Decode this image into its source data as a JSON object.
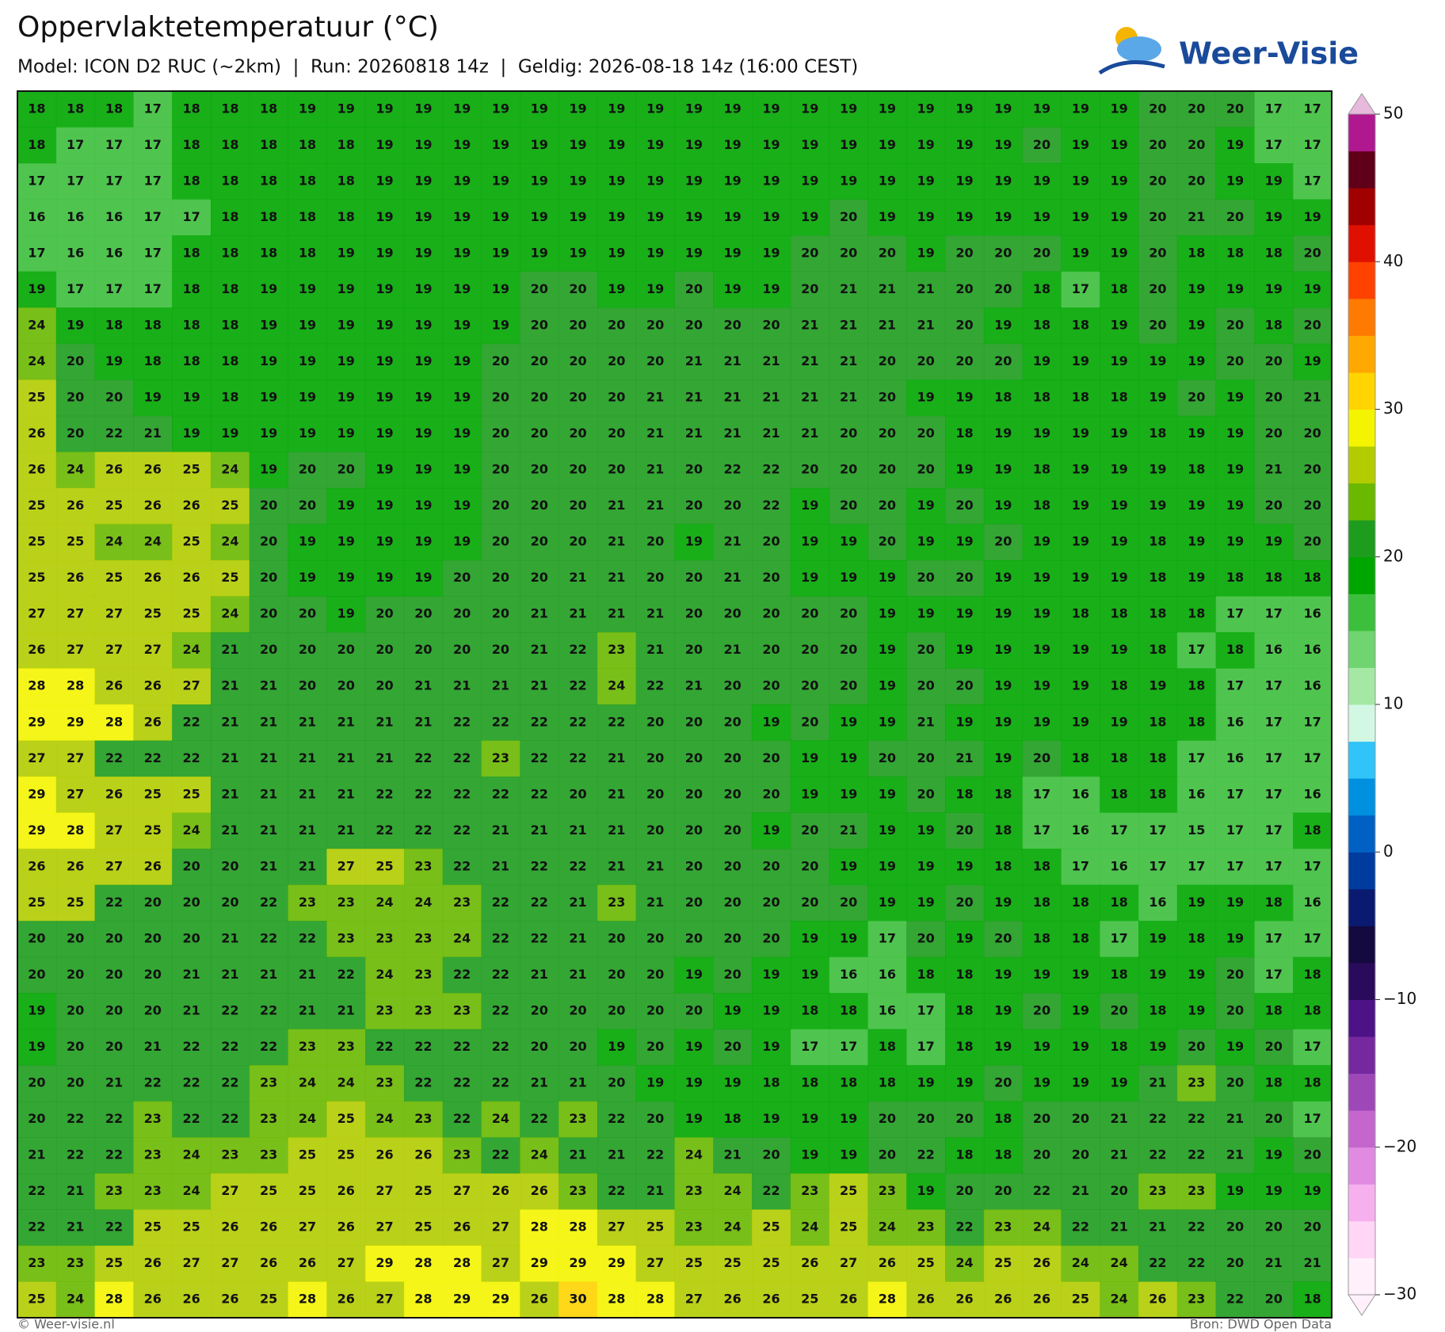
{
  "header": {
    "title": "Oppervlaktetemperatuur (°C)",
    "subtitle": "Model: ICON D2 RUC (~2km)  |  Run: 20260818 14z  |  Geldig: 2026-08-18 14z (16:00 CEST)"
  },
  "logo": {
    "text": "Weer-Visie"
  },
  "map": {
    "values": [
      [
        18,
        18,
        18,
        17,
        18,
        18,
        18,
        19,
        19,
        19,
        19,
        19,
        19,
        19,
        19,
        19,
        19,
        19,
        19,
        19,
        19,
        19,
        19,
        19,
        19,
        19,
        19,
        19,
        19,
        20,
        20,
        20,
        17,
        17
      ],
      [
        18,
        17,
        17,
        17,
        18,
        18,
        18,
        18,
        18,
        19,
        19,
        19,
        19,
        19,
        19,
        19,
        19,
        19,
        19,
        19,
        19,
        19,
        19,
        19,
        19,
        19,
        20,
        19,
        19,
        20,
        20,
        19,
        17,
        17
      ],
      [
        17,
        17,
        17,
        17,
        18,
        18,
        18,
        18,
        18,
        19,
        19,
        19,
        19,
        19,
        19,
        19,
        19,
        19,
        19,
        19,
        19,
        19,
        19,
        19,
        19,
        19,
        19,
        19,
        19,
        20,
        20,
        19,
        19,
        17
      ],
      [
        16,
        16,
        16,
        17,
        17,
        18,
        18,
        18,
        18,
        19,
        19,
        19,
        19,
        19,
        19,
        19,
        19,
        19,
        19,
        19,
        19,
        20,
        19,
        19,
        19,
        19,
        19,
        19,
        19,
        20,
        21,
        20,
        19,
        19
      ],
      [
        17,
        16,
        16,
        17,
        18,
        18,
        18,
        18,
        19,
        19,
        19,
        19,
        19,
        19,
        19,
        19,
        19,
        19,
        19,
        19,
        20,
        20,
        20,
        19,
        20,
        20,
        20,
        19,
        19,
        20,
        18,
        18,
        18,
        20
      ],
      [
        19,
        17,
        17,
        17,
        18,
        18,
        19,
        19,
        19,
        19,
        19,
        19,
        19,
        20,
        20,
        19,
        19,
        20,
        19,
        19,
        20,
        21,
        21,
        21,
        20,
        20,
        18,
        17,
        18,
        20,
        19,
        19,
        19,
        19
      ],
      [
        24,
        19,
        18,
        18,
        18,
        18,
        19,
        19,
        19,
        19,
        19,
        19,
        19,
        20,
        20,
        20,
        20,
        20,
        20,
        20,
        21,
        21,
        21,
        21,
        20,
        19,
        18,
        18,
        19,
        20,
        19,
        20,
        18,
        20
      ],
      [
        24,
        20,
        19,
        18,
        18,
        18,
        19,
        19,
        19,
        19,
        19,
        19,
        20,
        20,
        20,
        20,
        20,
        21,
        21,
        21,
        21,
        21,
        20,
        20,
        20,
        20,
        19,
        19,
        19,
        19,
        19,
        20,
        20,
        19
      ],
      [
        25,
        20,
        20,
        19,
        19,
        18,
        19,
        19,
        19,
        19,
        19,
        19,
        20,
        20,
        20,
        20,
        21,
        21,
        21,
        21,
        21,
        21,
        20,
        19,
        19,
        18,
        18,
        18,
        18,
        19,
        20,
        19,
        20,
        21
      ],
      [
        26,
        20,
        22,
        21,
        19,
        19,
        19,
        19,
        19,
        19,
        19,
        19,
        20,
        20,
        20,
        20,
        21,
        21,
        21,
        21,
        21,
        20,
        20,
        20,
        18,
        19,
        19,
        19,
        19,
        18,
        19,
        19,
        20,
        20
      ],
      [
        26,
        24,
        26,
        26,
        25,
        24,
        19,
        20,
        20,
        19,
        19,
        19,
        20,
        20,
        20,
        20,
        21,
        20,
        22,
        22,
        20,
        20,
        20,
        20,
        19,
        19,
        18,
        19,
        19,
        19,
        18,
        19,
        21,
        20
      ],
      [
        25,
        26,
        25,
        26,
        26,
        25,
        20,
        20,
        19,
        19,
        19,
        19,
        20,
        20,
        20,
        21,
        21,
        20,
        20,
        22,
        19,
        20,
        20,
        19,
        20,
        19,
        18,
        19,
        19,
        19,
        19,
        19,
        20,
        20
      ],
      [
        25,
        25,
        24,
        24,
        25,
        24,
        20,
        19,
        19,
        19,
        19,
        19,
        20,
        20,
        20,
        21,
        20,
        19,
        21,
        20,
        19,
        19,
        20,
        19,
        19,
        20,
        19,
        19,
        19,
        18,
        19,
        19,
        19,
        20
      ],
      [
        25,
        26,
        25,
        26,
        26,
        25,
        20,
        19,
        19,
        19,
        19,
        20,
        20,
        20,
        21,
        21,
        20,
        20,
        21,
        20,
        19,
        19,
        19,
        20,
        20,
        19,
        19,
        19,
        19,
        18,
        19,
        18,
        18,
        18
      ],
      [
        27,
        27,
        27,
        25,
        25,
        24,
        20,
        20,
        19,
        20,
        20,
        20,
        20,
        21,
        21,
        21,
        21,
        20,
        20,
        20,
        20,
        20,
        19,
        19,
        19,
        19,
        19,
        18,
        18,
        18,
        18,
        17,
        17,
        16
      ],
      [
        26,
        27,
        27,
        27,
        24,
        21,
        20,
        20,
        20,
        20,
        20,
        20,
        20,
        21,
        22,
        23,
        21,
        20,
        21,
        20,
        20,
        20,
        19,
        20,
        19,
        19,
        19,
        19,
        19,
        18,
        17,
        18,
        16,
        16
      ],
      [
        28,
        28,
        26,
        26,
        27,
        21,
        21,
        20,
        20,
        20,
        21,
        21,
        21,
        21,
        22,
        24,
        22,
        21,
        20,
        20,
        20,
        20,
        19,
        20,
        20,
        19,
        19,
        19,
        18,
        19,
        18,
        17,
        17,
        16
      ],
      [
        29,
        29,
        28,
        26,
        22,
        21,
        21,
        21,
        21,
        21,
        21,
        22,
        22,
        22,
        22,
        22,
        20,
        20,
        20,
        19,
        20,
        19,
        19,
        21,
        19,
        19,
        19,
        19,
        19,
        18,
        18,
        16,
        17,
        17
      ],
      [
        27,
        27,
        22,
        22,
        22,
        21,
        21,
        21,
        21,
        21,
        22,
        22,
        23,
        22,
        22,
        21,
        20,
        20,
        20,
        20,
        19,
        19,
        20,
        20,
        21,
        19,
        20,
        18,
        18,
        18,
        17,
        16,
        17,
        17
      ],
      [
        29,
        27,
        26,
        25,
        25,
        21,
        21,
        21,
        21,
        22,
        22,
        22,
        22,
        22,
        20,
        21,
        20,
        20,
        20,
        20,
        19,
        19,
        19,
        20,
        18,
        18,
        17,
        16,
        18,
        18,
        16,
        17,
        17,
        16
      ],
      [
        29,
        28,
        27,
        25,
        24,
        21,
        21,
        21,
        21,
        22,
        22,
        22,
        21,
        21,
        21,
        21,
        20,
        20,
        20,
        19,
        20,
        21,
        19,
        19,
        20,
        18,
        17,
        16,
        17,
        17,
        15,
        17,
        17,
        18
      ],
      [
        26,
        26,
        27,
        26,
        20,
        20,
        21,
        21,
        27,
        25,
        23,
        22,
        21,
        22,
        22,
        21,
        21,
        20,
        20,
        20,
        20,
        19,
        19,
        19,
        19,
        18,
        18,
        17,
        16,
        17,
        17,
        17,
        17,
        17
      ],
      [
        25,
        25,
        22,
        20,
        20,
        20,
        22,
        23,
        23,
        24,
        24,
        23,
        22,
        22,
        21,
        23,
        21,
        20,
        20,
        20,
        20,
        20,
        19,
        19,
        20,
        19,
        18,
        18,
        18,
        16,
        19,
        19,
        18,
        16
      ],
      [
        20,
        20,
        20,
        20,
        20,
        21,
        22,
        22,
        23,
        23,
        23,
        24,
        22,
        22,
        21,
        20,
        20,
        20,
        20,
        20,
        19,
        19,
        17,
        20,
        19,
        20,
        18,
        18,
        17,
        19,
        18,
        19,
        17,
        17
      ],
      [
        20,
        20,
        20,
        20,
        21,
        21,
        21,
        21,
        22,
        24,
        23,
        22,
        22,
        21,
        21,
        20,
        20,
        19,
        20,
        19,
        19,
        16,
        16,
        18,
        18,
        19,
        19,
        19,
        18,
        19,
        19,
        20,
        17,
        18
      ],
      [
        19,
        20,
        20,
        20,
        21,
        22,
        22,
        21,
        21,
        23,
        23,
        23,
        22,
        20,
        20,
        20,
        20,
        20,
        19,
        19,
        18,
        18,
        16,
        17,
        18,
        19,
        20,
        19,
        20,
        18,
        19,
        20,
        18,
        18
      ],
      [
        19,
        20,
        20,
        21,
        22,
        22,
        22,
        23,
        23,
        22,
        22,
        22,
        22,
        20,
        20,
        19,
        20,
        19,
        20,
        19,
        17,
        17,
        18,
        17,
        18,
        19,
        19,
        19,
        18,
        19,
        20,
        19,
        20,
        17
      ],
      [
        20,
        20,
        21,
        22,
        22,
        22,
        23,
        24,
        24,
        23,
        22,
        22,
        22,
        21,
        21,
        20,
        19,
        19,
        19,
        18,
        18,
        18,
        18,
        19,
        19,
        20,
        19,
        19,
        19,
        21,
        23,
        20,
        18,
        18
      ],
      [
        20,
        22,
        22,
        23,
        22,
        22,
        23,
        24,
        25,
        24,
        23,
        22,
        24,
        22,
        23,
        22,
        20,
        19,
        18,
        19,
        19,
        19,
        20,
        20,
        20,
        18,
        20,
        20,
        21,
        22,
        22,
        21,
        20,
        17
      ],
      [
        21,
        22,
        22,
        23,
        24,
        23,
        23,
        25,
        25,
        26,
        26,
        23,
        22,
        24,
        21,
        21,
        22,
        24,
        21,
        20,
        19,
        19,
        20,
        22,
        18,
        18,
        20,
        20,
        21,
        22,
        22,
        21,
        19,
        20
      ],
      [
        22,
        21,
        23,
        23,
        24,
        27,
        25,
        25,
        26,
        27,
        25,
        27,
        26,
        26,
        23,
        22,
        21,
        23,
        24,
        22,
        23,
        25,
        23,
        19,
        20,
        20,
        22,
        21,
        20,
        23,
        23,
        19,
        19,
        19
      ],
      [
        22,
        21,
        22,
        25,
        25,
        26,
        26,
        27,
        26,
        27,
        25,
        26,
        27,
        28,
        28,
        27,
        25,
        23,
        24,
        25,
        24,
        25,
        24,
        23,
        22,
        23,
        24,
        22,
        21,
        21,
        22,
        20,
        20,
        20
      ],
      [
        23,
        23,
        25,
        26,
        27,
        27,
        26,
        26,
        27,
        29,
        28,
        28,
        27,
        29,
        29,
        29,
        27,
        25,
        25,
        25,
        26,
        27,
        26,
        25,
        24,
        25,
        26,
        24,
        24,
        22,
        22,
        20,
        21,
        21
      ],
      [
        25,
        24,
        28,
        26,
        26,
        26,
        25,
        28,
        26,
        27,
        28,
        29,
        29,
        26,
        30,
        28,
        28,
        27,
        26,
        26,
        25,
        26,
        28,
        26,
        26,
        26,
        26,
        25,
        24,
        26,
        23,
        22,
        20,
        18
      ]
    ]
  },
  "colorbar": {
    "lim": [
      -30,
      50
    ],
    "ticks": [
      50,
      40,
      30,
      20,
      10,
      0,
      {
        "value": -10,
        "label": "−10"
      },
      {
        "value": -20,
        "label": "−20"
      },
      {
        "value": -30,
        "label": "−30"
      }
    ],
    "colors": [
      "#fff0fb",
      "#ffd6f6",
      "#f7b0ee",
      "#e08ae2",
      "#c466cc",
      "#9e48b8",
      "#76289e",
      "#4c1286",
      "#2a0a5a",
      "#140a40",
      "#0a1a70",
      "#003c9e",
      "#0060c4",
      "#0090e0",
      "#30c4f8",
      "#d2f8e4",
      "#a4e8a4",
      "#70d470",
      "#3cbf3c",
      "#00a600",
      "#1e9c1e",
      "#6ab800",
      "#b2cc00",
      "#f4f400",
      "#ffd400",
      "#ffa800",
      "#ff7a00",
      "#ff4200",
      "#e01000",
      "#a00000",
      "#600018",
      "#b01890"
    ]
  },
  "footer": {
    "left": "© Weer-visie.nl",
    "right": "Bron: DWD Open Data"
  }
}
